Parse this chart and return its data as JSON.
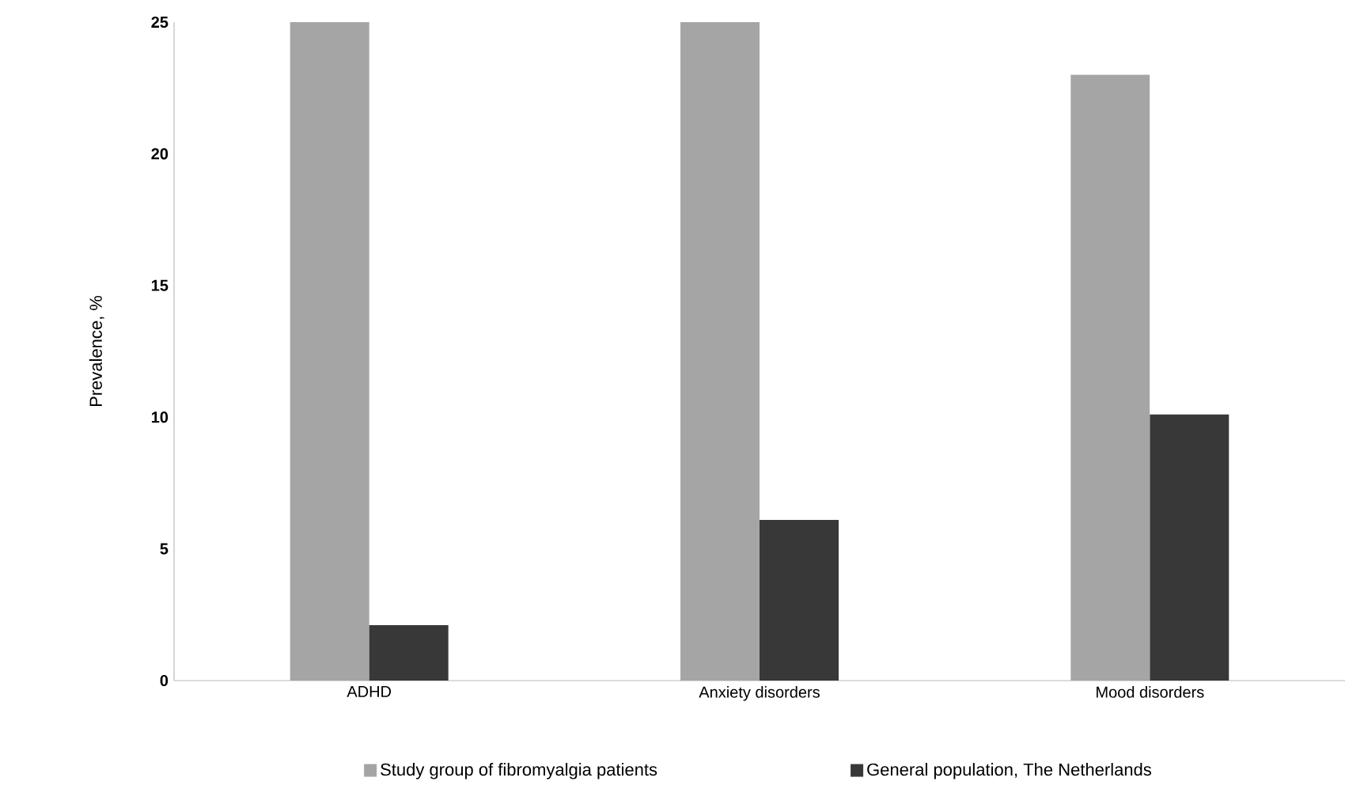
{
  "chart_data": {
    "type": "bar",
    "ylabel": "Prevalence, %",
    "categories": [
      "ADHD",
      "Anxiety disorders",
      "Mood disorders"
    ],
    "series": [
      {
        "name": "Study group of fibromyalgia patients",
        "color": "#a5a5a5",
        "values": [
          25,
          25,
          23
        ]
      },
      {
        "name": "General population, The Netherlands",
        "color": "#383838",
        "values": [
          2.1,
          6.1,
          10.1
        ]
      }
    ],
    "ylim": [
      0,
      25
    ],
    "yticks": [
      0,
      5,
      10,
      15,
      20,
      25
    ],
    "legend": "bottom",
    "grid": false
  }
}
